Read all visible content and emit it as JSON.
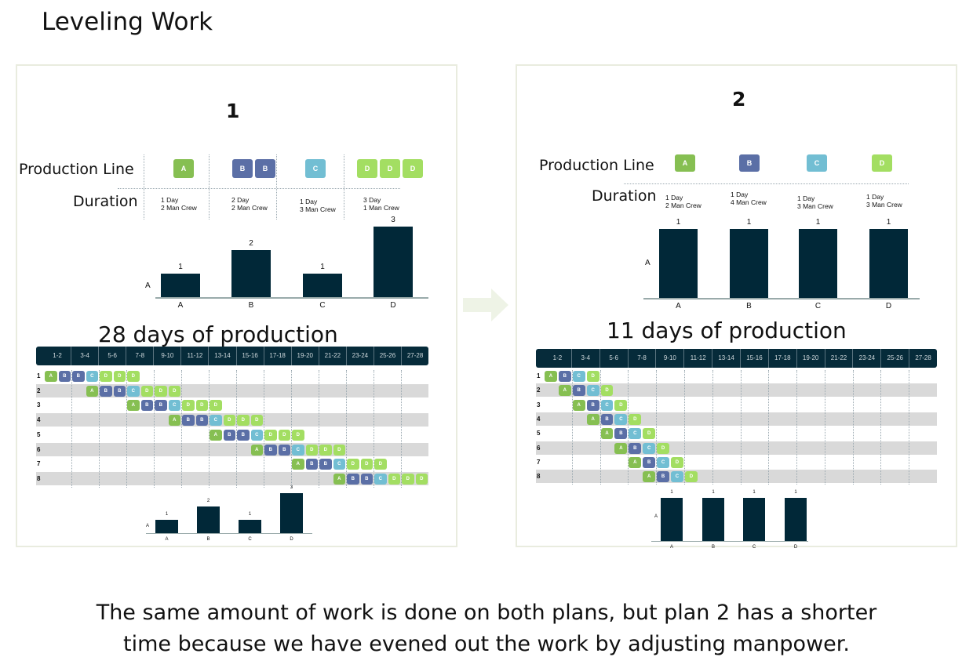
{
  "title": "Leveling Work",
  "colors": {
    "A": "#86bf52",
    "B": "#5b6fa6",
    "C": "#72bed3",
    "D": "#a3de62",
    "bar": "#012838",
    "header": "#062b3a"
  },
  "plans": [
    {
      "id": "1",
      "production_line_label": "Production Line",
      "duration_label": "Duration",
      "tasks": [
        {
          "name": "A",
          "blocks": 1,
          "duration_line1": "1 Day",
          "duration_line2": "2 Man Crew"
        },
        {
          "name": "B",
          "blocks": 2,
          "duration_line1": "2 Day",
          "duration_line2": "2 Man Crew"
        },
        {
          "name": "C",
          "blocks": 1,
          "duration_line1": "1 Day",
          "duration_line2": "3 Man Crew"
        },
        {
          "name": "D",
          "blocks": 3,
          "duration_line1": "3 Day",
          "duration_line2": "1 Man Crew"
        }
      ],
      "chart_data": {
        "type": "bar",
        "ylabel": "A",
        "categories": [
          "A",
          "B",
          "C",
          "D"
        ],
        "values": [
          1,
          2,
          1,
          3
        ]
      },
      "summary": "28 days of production",
      "gantt": {
        "columns": [
          "1-2",
          "3-4",
          "5-6",
          "7-8",
          "9-10",
          "11-12",
          "13-14",
          "15-16",
          "17-18",
          "19-20",
          "21-22",
          "23-24",
          "25-26",
          "27-28"
        ],
        "rows": [
          "1",
          "2",
          "3",
          "4",
          "5",
          "6",
          "7",
          "8"
        ],
        "sequence": [
          "A",
          "B",
          "B",
          "C",
          "D",
          "D",
          "D"
        ],
        "row_start_offset_days": 3
      }
    },
    {
      "id": "2",
      "production_line_label": "Production Line",
      "duration_label": "Duration",
      "tasks": [
        {
          "name": "A",
          "blocks": 1,
          "duration_line1": "1 Day",
          "duration_line2": "2 Man Crew"
        },
        {
          "name": "B",
          "blocks": 1,
          "duration_line1": "1 Day",
          "duration_line2": "4 Man Crew"
        },
        {
          "name": "C",
          "blocks": 1,
          "duration_line1": "1 Day",
          "duration_line2": "3 Man Crew"
        },
        {
          "name": "D",
          "blocks": 1,
          "duration_line1": "1 Day",
          "duration_line2": "3 Man Crew"
        }
      ],
      "chart_data": {
        "type": "bar",
        "ylabel": "A",
        "categories": [
          "A",
          "B",
          "C",
          "D"
        ],
        "values": [
          1,
          1,
          1,
          1
        ]
      },
      "summary": "11 days of production",
      "gantt": {
        "columns": [
          "1-2",
          "3-4",
          "5-6",
          "7-8",
          "9-10",
          "11-12",
          "13-14",
          "15-16",
          "17-18",
          "19-20",
          "21-22",
          "23-24",
          "25-26",
          "27-28"
        ],
        "rows": [
          "1",
          "2",
          "3",
          "4",
          "5",
          "6",
          "7",
          "8"
        ],
        "sequence": [
          "A",
          "B",
          "C",
          "D"
        ],
        "row_start_offset_days": 1
      }
    }
  ],
  "caption_line1": "The same amount of work is done on both plans, but plan 2 has a shorter",
  "caption_line2": "time because we have evened out the work by adjusting manpower."
}
